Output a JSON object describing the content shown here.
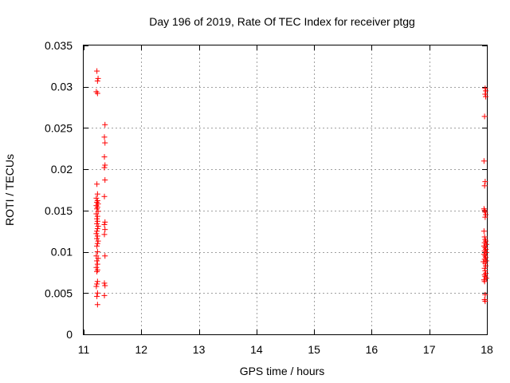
{
  "chart_data": {
    "type": "scatter",
    "title": "Day 196 of 2019, Rate Of TEC Index for receiver ptgg",
    "xlabel": "GPS time / hours",
    "ylabel": "ROTI / TECUs",
    "xlim": [
      11,
      18
    ],
    "ylim": [
      0,
      0.035
    ],
    "xticks": [
      "11",
      "12",
      "13",
      "14",
      "15",
      "16",
      "17",
      "18"
    ],
    "yticks": [
      "0",
      "0.005",
      "0.01",
      "0.015",
      "0.02",
      "0.025",
      "0.03",
      "0.035"
    ],
    "grid": true,
    "marker": "+",
    "marker_color": "#ff0000",
    "series": [
      {
        "points": [
          [
            11.23,
            0.0319
          ],
          [
            11.25,
            0.031
          ],
          [
            11.24,
            0.0307
          ],
          [
            11.22,
            0.0294
          ],
          [
            11.24,
            0.0292
          ],
          [
            11.23,
            0.0182
          ],
          [
            11.24,
            0.017
          ],
          [
            11.22,
            0.0165
          ],
          [
            11.24,
            0.0162
          ],
          [
            11.23,
            0.016
          ],
          [
            11.25,
            0.0158
          ],
          [
            11.22,
            0.0156
          ],
          [
            11.24,
            0.0154
          ],
          [
            11.23,
            0.0152
          ],
          [
            11.25,
            0.0149
          ],
          [
            11.22,
            0.0146
          ],
          [
            11.24,
            0.0143
          ],
          [
            11.23,
            0.014
          ],
          [
            11.24,
            0.0137
          ],
          [
            11.23,
            0.0134
          ],
          [
            11.25,
            0.0131
          ],
          [
            11.24,
            0.0128
          ],
          [
            11.23,
            0.0125
          ],
          [
            11.22,
            0.0122
          ],
          [
            11.24,
            0.0119
          ],
          [
            11.23,
            0.0116
          ],
          [
            11.25,
            0.0113
          ],
          [
            11.24,
            0.011
          ],
          [
            11.23,
            0.0107
          ],
          [
            11.24,
            0.01
          ],
          [
            11.22,
            0.0095
          ],
          [
            11.25,
            0.0092
          ],
          [
            11.23,
            0.0089
          ],
          [
            11.24,
            0.0085
          ],
          [
            11.22,
            0.0081
          ],
          [
            11.24,
            0.0078
          ],
          [
            11.23,
            0.0076
          ],
          [
            11.24,
            0.0064
          ],
          [
            11.23,
            0.0061
          ],
          [
            11.22,
            0.0058
          ],
          [
            11.24,
            0.005
          ],
          [
            11.23,
            0.0046
          ],
          [
            11.24,
            0.0036
          ],
          [
            11.37,
            0.0254
          ],
          [
            11.36,
            0.0239
          ],
          [
            11.37,
            0.0232
          ],
          [
            11.36,
            0.0215
          ],
          [
            11.37,
            0.0205
          ],
          [
            11.36,
            0.0202
          ],
          [
            11.37,
            0.0187
          ],
          [
            11.36,
            0.0167
          ],
          [
            11.37,
            0.0136
          ],
          [
            11.36,
            0.0133
          ],
          [
            11.37,
            0.0127
          ],
          [
            11.36,
            0.0121
          ],
          [
            11.37,
            0.0095
          ],
          [
            11.36,
            0.0062
          ],
          [
            11.37,
            0.0059
          ],
          [
            11.36,
            0.0047
          ],
          [
            17.97,
            0.0298
          ],
          [
            17.98,
            0.0295
          ],
          [
            17.97,
            0.0291
          ],
          [
            17.98,
            0.0288
          ],
          [
            17.96,
            0.0264
          ],
          [
            17.95,
            0.021
          ],
          [
            17.97,
            0.0185
          ],
          [
            17.96,
            0.018
          ],
          [
            17.95,
            0.0152
          ],
          [
            17.96,
            0.015
          ],
          [
            17.97,
            0.0148
          ],
          [
            17.98,
            0.0145
          ],
          [
            17.97,
            0.0142
          ],
          [
            17.95,
            0.0125
          ],
          [
            17.96,
            0.0118
          ],
          [
            17.97,
            0.0115
          ],
          [
            17.98,
            0.0113
          ],
          [
            17.96,
            0.0111
          ],
          [
            17.99,
            0.0109
          ],
          [
            17.95,
            0.0107
          ],
          [
            17.97,
            0.0105
          ],
          [
            17.98,
            0.0103
          ],
          [
            17.96,
            0.0101
          ],
          [
            17.99,
            0.0099
          ],
          [
            17.95,
            0.0097
          ],
          [
            17.97,
            0.0095
          ],
          [
            17.98,
            0.0093
          ],
          [
            17.96,
            0.0091
          ],
          [
            17.99,
            0.0089
          ],
          [
            17.94,
            0.0088
          ],
          [
            17.97,
            0.0086
          ],
          [
            17.98,
            0.0083
          ],
          [
            17.96,
            0.008
          ],
          [
            17.97,
            0.0077
          ],
          [
            17.98,
            0.0074
          ],
          [
            17.96,
            0.0072
          ],
          [
            17.97,
            0.007
          ],
          [
            17.99,
            0.0068
          ],
          [
            17.95,
            0.0066
          ],
          [
            17.96,
            0.0064
          ],
          [
            17.97,
            0.0048
          ],
          [
            17.96,
            0.0042
          ],
          [
            17.97,
            0.004
          ]
        ]
      }
    ]
  }
}
